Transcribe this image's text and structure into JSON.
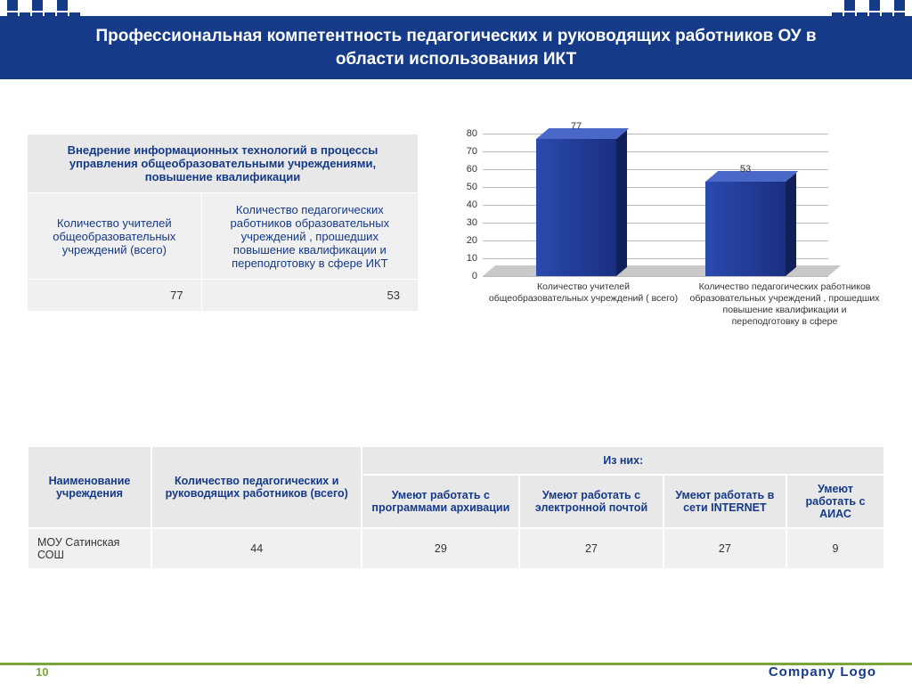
{
  "title": "Профессиональная компетентность педагогических и руководящих работников ОУ в области использования ИКТ",
  "left_table": {
    "header": "Внедрение информационных технологий в процессы управления общеобразовательными учреждениями, повышение квалификации",
    "col1_label": "Количество учителей общеобразовательных учреждений (всего)",
    "col2_label": "Количество педагогических работников образовательных учреждений , прошедших повышение квалификации и переподготовку в сфере  ИКТ",
    "val1": "77",
    "val2": "53"
  },
  "chart": {
    "type": "3d-bar",
    "ylim_max": 80,
    "ytick_step": 10,
    "bar_color_front_light": "#2a4bb0",
    "bar_color_front_dark": "#1a2f80",
    "bar_color_top": "#4a68c8",
    "bar_color_side": "#10205a",
    "grid_color": "#bbbbbb",
    "floor_color": "#c8c8c8",
    "categories": [
      "Количество учителей общеобразовательных учреждений            ( всего)",
      "Количество педагогических работников образовательных учреждений , прошедших повышение квалификации и переподготовку в сфере"
    ],
    "values": [
      77,
      53
    ]
  },
  "bottom_table": {
    "group_header": "Из них:",
    "columns": [
      "Наименование учреждения",
      "Количество педагогических и руководящих работников (всего)",
      "Умеют работать с программами архивации",
      "Умеют работать с электронной почтой",
      "Умеют работать в сети INTERNET",
      "Умеют работать с АИАС"
    ],
    "row_label": "МОУ Сатинская СОШ",
    "row_values": [
      "44",
      "29",
      "27",
      "27",
      "9"
    ]
  },
  "footer": {
    "page": "10",
    "logo": "Company  Logo"
  },
  "colors": {
    "brand_blue": "#153a88",
    "accent_green": "#7aa53a",
    "table_bg": "#f0f0f0",
    "table_hdr_bg": "#e8e8e8"
  }
}
